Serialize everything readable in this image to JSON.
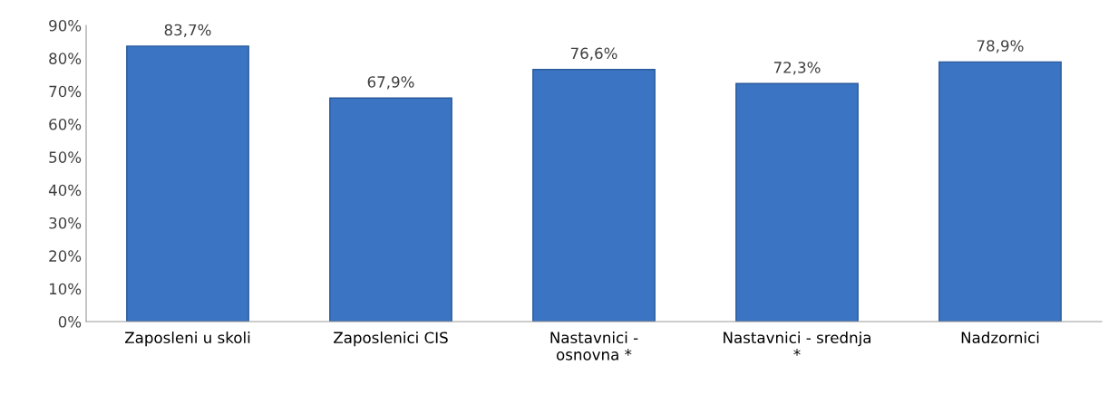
{
  "chart_data": {
    "type": "bar",
    "categories": [
      "Zaposleni u skoli",
      "Zaposlenici CIS",
      "Nastavnici -\nosnovna *",
      "Nastavnici - srednja\n*",
      "Nadzornici"
    ],
    "values": [
      83.7,
      67.9,
      76.6,
      72.3,
      78.9
    ],
    "value_labels": [
      "83,7%",
      "67,9%",
      "76,6%",
      "72,3%",
      "78,9%"
    ],
    "color": "#3a74c2",
    "ylim": [
      0,
      90
    ],
    "yticks": [
      {
        "value": 0,
        "label": "0%"
      },
      {
        "value": 10,
        "label": "10%"
      },
      {
        "value": 20,
        "label": "20%"
      },
      {
        "value": 30,
        "label": "30%"
      },
      {
        "value": 40,
        "label": "40%"
      },
      {
        "value": 50,
        "label": "50%"
      },
      {
        "value": 60,
        "label": "60%"
      },
      {
        "value": 70,
        "label": "70%"
      },
      {
        "value": 80,
        "label": "80%"
      },
      {
        "value": 90,
        "label": "90%"
      }
    ],
    "grid": false
  }
}
